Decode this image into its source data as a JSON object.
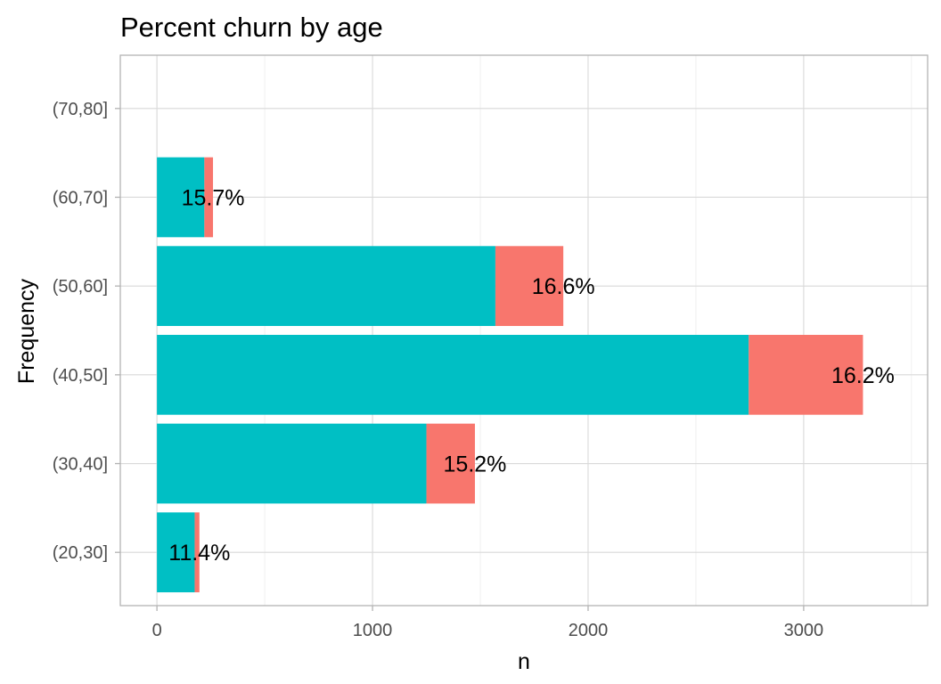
{
  "chart_data": {
    "type": "bar",
    "orientation": "horizontal",
    "stacked": true,
    "title": "Percent churn by age",
    "xlabel": "n",
    "ylabel": "Frequency",
    "xlim": [
      -170,
      3575
    ],
    "xticks": [
      0,
      1000,
      2000,
      3000
    ],
    "xtick_labels": [
      "0",
      "1000",
      "2000",
      "3000"
    ],
    "categories": [
      "(20,30]",
      "(30,40]",
      "(40,50]",
      "(50,60]",
      "(60,70]",
      "(70,80]"
    ],
    "series": [
      {
        "values": [
          175,
          1250,
          2745,
          1570,
          220,
          0
        ],
        "color": "#00BFC4"
      },
      {
        "values": [
          22,
          225,
          530,
          315,
          40,
          0
        ],
        "color": "#F8766D"
      }
    ],
    "data_labels": [
      "11.4%",
      "15.2%",
      "16.2%",
      "16.6%",
      "15.7%",
      ""
    ],
    "grid": true,
    "legend": "none"
  }
}
